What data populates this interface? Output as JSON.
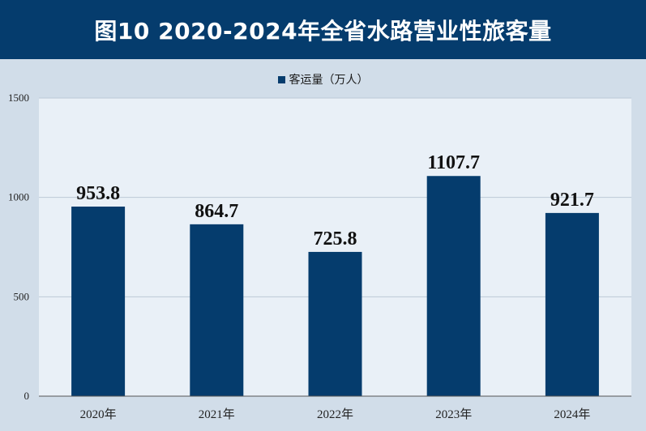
{
  "title": "图10  2020-2024年全省水路营业性旅客量",
  "colors": {
    "header_bg": "#053c6d",
    "bar": "#053c6d",
    "page_bg": "#d1dde9",
    "plot_bg": "#e9f0f7"
  },
  "chart_data": {
    "type": "bar",
    "categories": [
      "2020年",
      "2021年",
      "2022年",
      "2023年",
      "2024年"
    ],
    "series": [
      {
        "name": "客运量（万人）",
        "values": [
          953.8,
          864.7,
          725.8,
          1107.7,
          921.7
        ]
      }
    ],
    "data_labels": [
      "953.8",
      "864.7",
      "725.8",
      "1107.7",
      "921.7"
    ],
    "ylim": [
      0,
      1500
    ],
    "yticks": [
      "0",
      "500",
      "1000",
      "1500"
    ],
    "grid": true,
    "legend_position": "top-center"
  }
}
